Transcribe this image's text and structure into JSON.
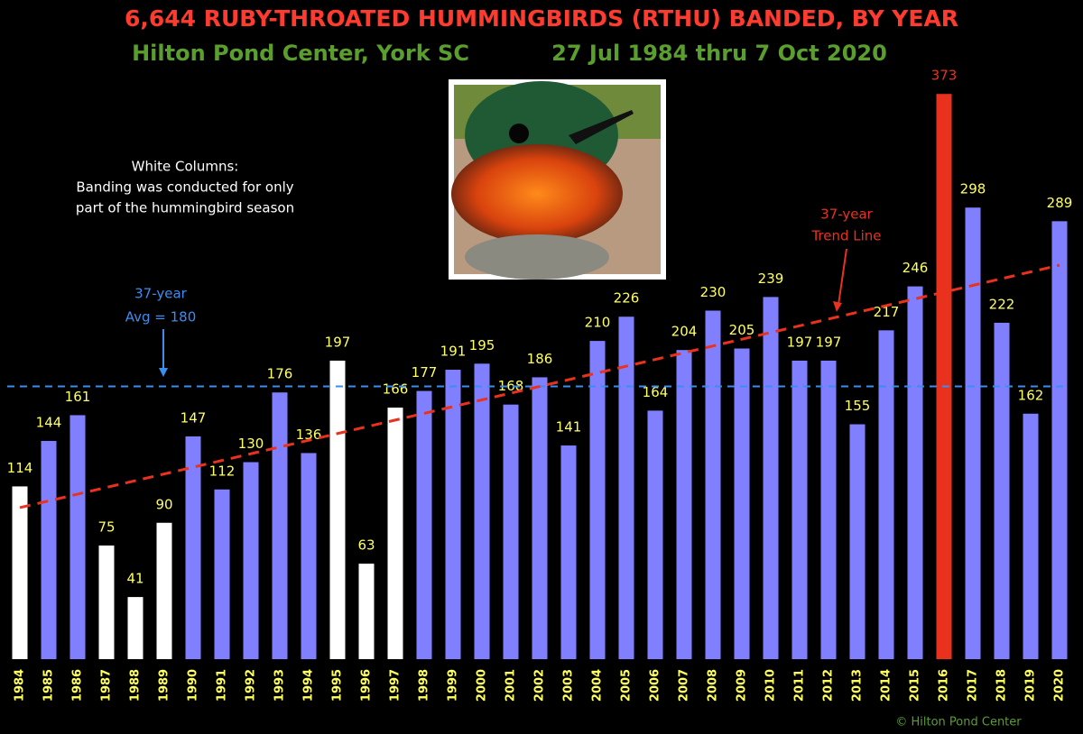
{
  "chart_data": {
    "type": "bar",
    "title": "6,644  RUBY-THROATED HUMMINGBIRDS (RTHU) BANDED, BY YEAR",
    "subtitle": [
      "Hilton Pond Center, York SC",
      "27 Jul 1984 thru 7 Oct 2020"
    ],
    "note": [
      "White Columns:",
      "Banding was conducted for only",
      "part of the hummingbird season"
    ],
    "copyright": "© Hilton Pond Center",
    "categories": [
      "1984",
      "1985",
      "1986",
      "1987",
      "1988",
      "1989",
      "1990",
      "1991",
      "1992",
      "1993",
      "1994",
      "1995",
      "1996",
      "1997",
      "1998",
      "1999",
      "2000",
      "2001",
      "2002",
      "2003",
      "2004",
      "2005",
      "2006",
      "2007",
      "2008",
      "2009",
      "2010",
      "2011",
      "2012",
      "2013",
      "2014",
      "2015",
      "2016",
      "2017",
      "2018",
      "2019",
      "2020"
    ],
    "values": [
      114,
      144,
      161,
      75,
      41,
      90,
      147,
      112,
      130,
      176,
      136,
      197,
      63,
      166,
      177,
      191,
      195,
      168,
      186,
      141,
      210,
      226,
      164,
      204,
      230,
      205,
      239,
      197,
      197,
      155,
      217,
      246,
      373,
      298,
      222,
      162,
      289
    ],
    "colors": [
      "#ffffff",
      "#8080ff",
      "#8080ff",
      "#ffffff",
      "#ffffff",
      "#ffffff",
      "#8080ff",
      "#8080ff",
      "#8080ff",
      "#8080ff",
      "#8080ff",
      "#ffffff",
      "#ffffff",
      "#ffffff",
      "#8080ff",
      "#8080ff",
      "#8080ff",
      "#8080ff",
      "#8080ff",
      "#8080ff",
      "#8080ff",
      "#8080ff",
      "#8080ff",
      "#8080ff",
      "#8080ff",
      "#8080ff",
      "#8080ff",
      "#8080ff",
      "#8080ff",
      "#8080ff",
      "#8080ff",
      "#8080ff",
      "#e8321e",
      "#8080ff",
      "#8080ff",
      "#8080ff",
      "#8080ff"
    ],
    "value_label_colors": [
      "#ffff66",
      "#ffff66",
      "#ffff66",
      "#ffff66",
      "#ffff66",
      "#ffff66",
      "#ffff66",
      "#ffff66",
      "#ffff66",
      "#ffff66",
      "#ffff66",
      "#ffff66",
      "#ffff66",
      "#ffff66",
      "#ffff66",
      "#ffff66",
      "#ffff66",
      "#ffff66",
      "#ffff66",
      "#ffff66",
      "#ffff66",
      "#ffff66",
      "#ffff66",
      "#ffff66",
      "#ffff66",
      "#ffff66",
      "#ffff66",
      "#ffff66",
      "#ffff66",
      "#ffff66",
      "#ffff66",
      "#ffff66",
      "#e8321e",
      "#ffff66",
      "#ffff66",
      "#ffff66",
      "#ffff66"
    ],
    "ylim": [
      0,
      435
    ],
    "average": 180,
    "average_color": "#3a8ef0",
    "avg_annotation": [
      "37-year",
      "Avg = 180"
    ],
    "trend_line": [
      100,
      260
    ],
    "trend_color": "#e8321e",
    "trend_annotation": [
      "37-year",
      "Trend Line"
    ]
  }
}
